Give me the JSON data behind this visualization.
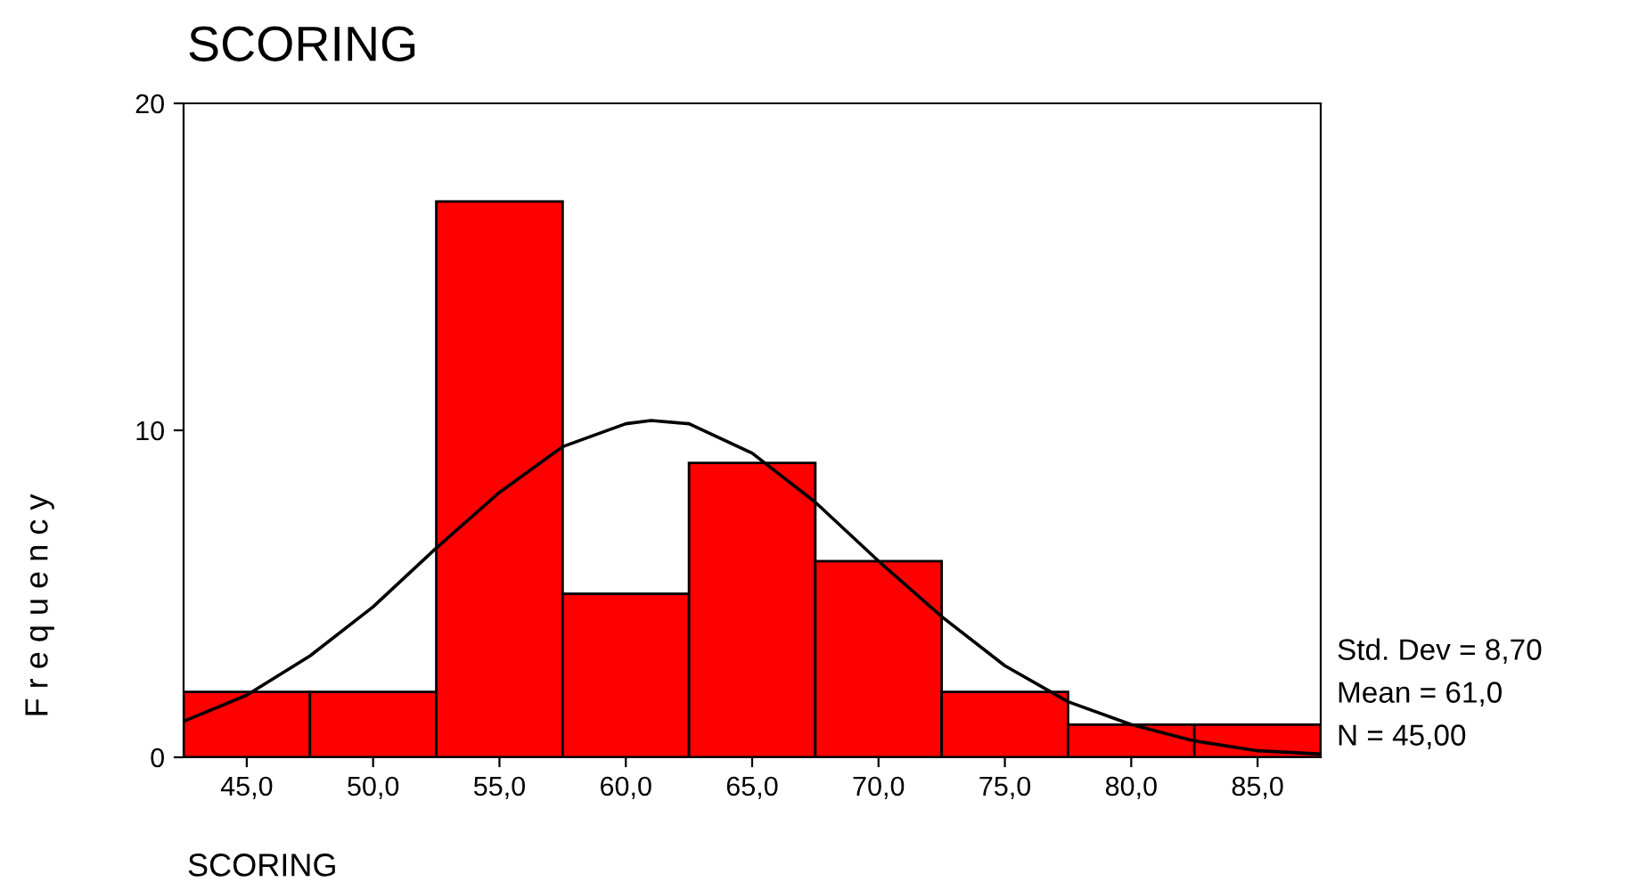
{
  "chart_data": {
    "type": "histogram",
    "title": "SCORING",
    "xlabel": "SCORING",
    "ylabel": "F r e q u e n c y",
    "series": [
      {
        "type": "histogram",
        "bins": [
          42.5,
          47.5,
          52.5,
          57.5,
          62.5,
          67.5,
          72.5,
          77.5,
          82.5,
          87.5
        ],
        "values": [
          2,
          2,
          17,
          5,
          9,
          6,
          2,
          1,
          1
        ],
        "color": "#ff0000"
      },
      {
        "type": "line",
        "color": "#000000",
        "x": [
          42.5,
          45,
          47.5,
          50,
          52.5,
          55,
          57.5,
          60,
          61,
          62.5,
          65,
          67.5,
          70,
          72.5,
          75,
          77.5,
          80,
          82.5,
          85,
          87.5
        ],
        "values": [
          1.1,
          1.9,
          3.1,
          4.6,
          6.4,
          8.1,
          9.5,
          10.2,
          10.3,
          10.2,
          9.3,
          7.8,
          6.0,
          4.3,
          2.8,
          1.7,
          1.0,
          0.5,
          0.2,
          0.1
        ]
      }
    ],
    "xlim": [
      42.5,
      87.5
    ],
    "ylim": [
      0,
      20
    ],
    "xticks": [
      {
        "value": 45,
        "label": "45,0"
      },
      {
        "value": 50,
        "label": "50,0"
      },
      {
        "value": 55,
        "label": "55,0"
      },
      {
        "value": 60,
        "label": "60,0"
      },
      {
        "value": 65,
        "label": "65,0"
      },
      {
        "value": 70,
        "label": "70,0"
      },
      {
        "value": 75,
        "label": "75,0"
      },
      {
        "value": 80,
        "label": "80,0"
      },
      {
        "value": 85,
        "label": "85,0"
      }
    ],
    "yticks": [
      0,
      10,
      20
    ],
    "annotations": [
      "Std. Dev = 8,70",
      "Mean = 61,0",
      "N = 45,00"
    ]
  }
}
